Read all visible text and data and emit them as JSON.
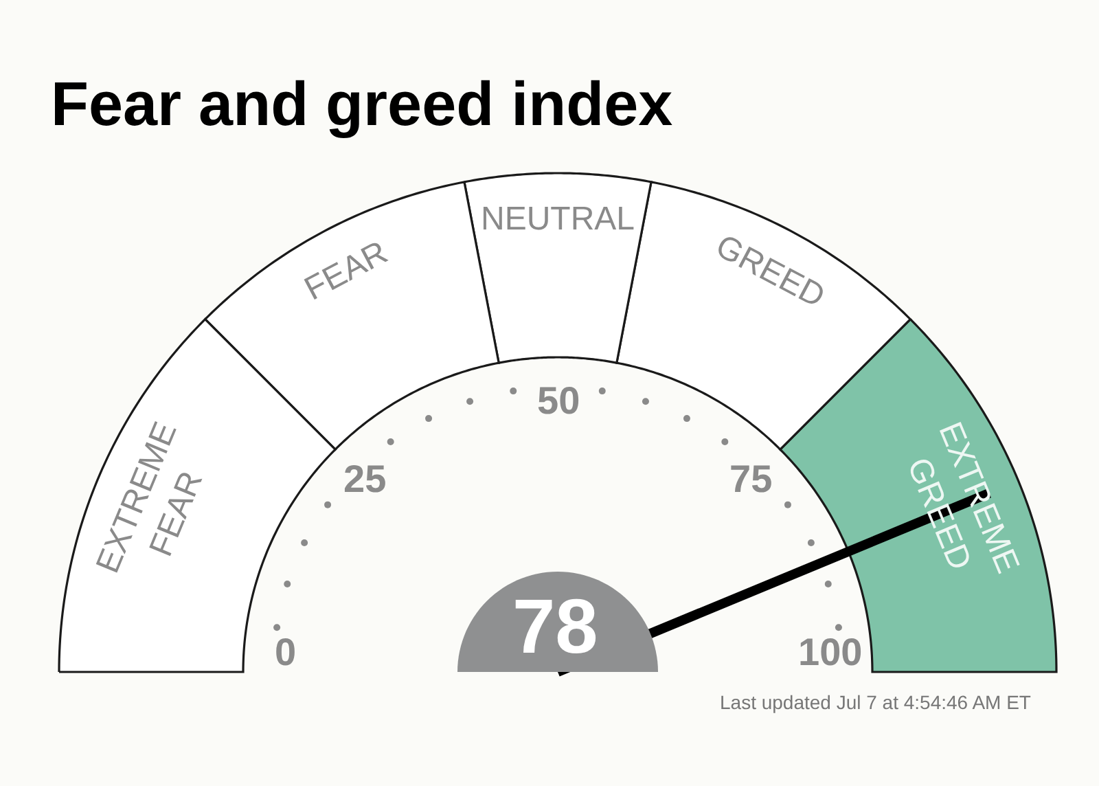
{
  "chart_data": {
    "type": "donut",
    "title": "Fear and greed index",
    "categories": [
      "EXTREME FEAR",
      "FEAR",
      "NEUTRAL",
      "GREED",
      "EXTREME GREED"
    ],
    "values": [
      25,
      19,
      12,
      19,
      25
    ],
    "colors": [
      "#ffffff",
      "#ffffff",
      "#ffffff",
      "#ffffff",
      "#7fc3a8"
    ],
    "needle": "EXTREME GREED",
    "annotations": [
      "0",
      "25",
      "50",
      "75",
      "100",
      "78",
      "Last updated Jul 7 at 4:54:46 AM ET"
    ]
  }
}
